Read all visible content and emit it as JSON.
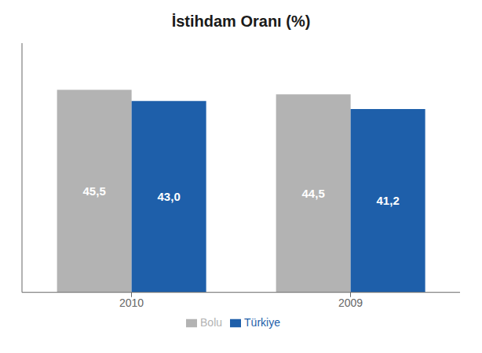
{
  "chart_data": {
    "type": "bar",
    "title": "İstihdam Oranı (%)",
    "categories": [
      "2010",
      "2009"
    ],
    "series": [
      {
        "name": "Bolu",
        "color": "#b3b3b3",
        "values": [
          45.5,
          44.5
        ],
        "value_labels": [
          "45,5",
          "44,5"
        ]
      },
      {
        "name": "Türkiye",
        "color": "#1e5faa",
        "values": [
          43.0,
          41.2
        ],
        "value_labels": [
          "43,0",
          "41,2"
        ]
      }
    ],
    "ylim": [
      0,
      56
    ],
    "data_labels": true,
    "tick_labels": "x",
    "legend": "bottom",
    "grid": false
  }
}
